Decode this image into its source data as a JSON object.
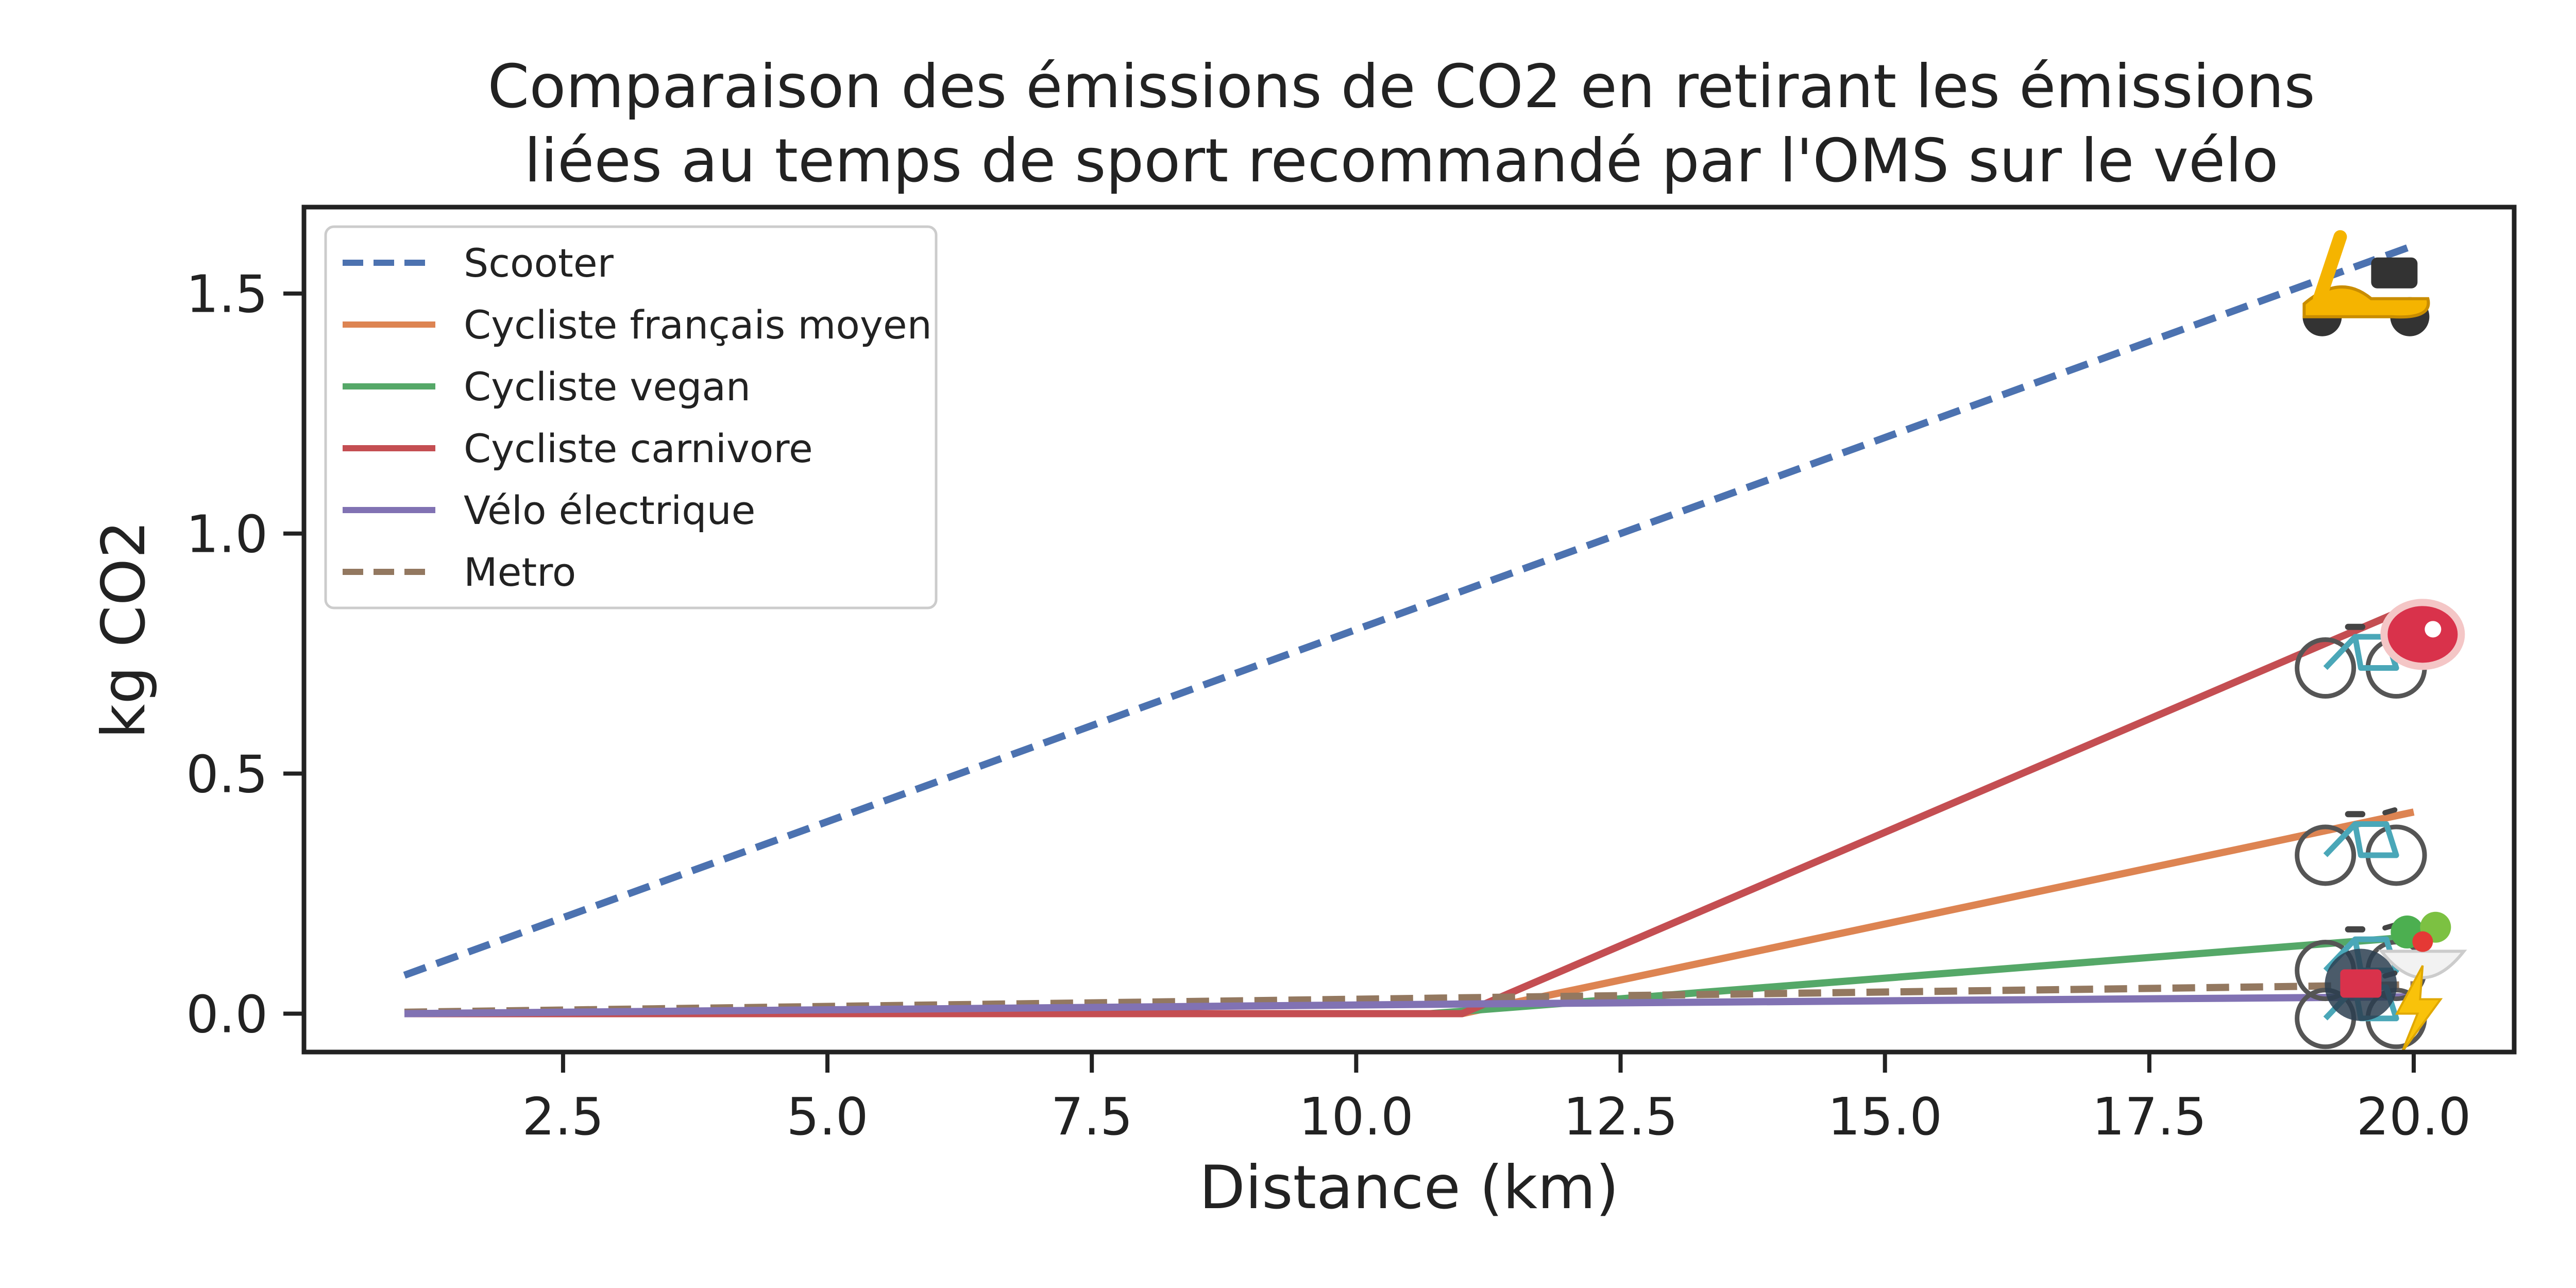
{
  "chart_data": {
    "type": "line",
    "title_line1": "Comparaison des émissions de CO2 en retirant les émissions",
    "title_line2": "liées au temps de sport recommandé par l'OMS sur le vélo",
    "xlabel": "Distance (km)",
    "ylabel": "kg CO2",
    "xlim": [
      0.05,
      20.95
    ],
    "ylim": [
      -0.08,
      1.68
    ],
    "xticks": [
      2.5,
      5.0,
      7.5,
      10.0,
      12.5,
      15.0,
      17.5,
      20.0
    ],
    "xtick_labels": [
      "2.5",
      "5.0",
      "7.5",
      "10.0",
      "12.5",
      "15.0",
      "17.5",
      "20.0"
    ],
    "yticks": [
      0.0,
      0.5,
      1.0,
      1.5
    ],
    "ytick_labels": [
      "0.0",
      "0.5",
      "1.0",
      "1.5"
    ],
    "grid": false,
    "legend_position": "upper-left",
    "series": [
      {
        "name": "Scooter",
        "color": "#4c72b0",
        "dashed": true,
        "icon": "scooter-icon",
        "points": [
          [
            1,
            0.08
          ],
          [
            20,
            1.6
          ]
        ]
      },
      {
        "name": "Cycliste français moyen",
        "color": "#dd8452",
        "dashed": false,
        "icon": "bicycle-icon",
        "points": [
          [
            1,
            0.0
          ],
          [
            11.0,
            0.0
          ],
          [
            20,
            0.42
          ]
        ]
      },
      {
        "name": "Cycliste vegan",
        "color": "#55a868",
        "dashed": false,
        "icon": "bicycle-salad-icon",
        "points": [
          [
            1,
            0.0
          ],
          [
            10.7,
            0.0
          ],
          [
            20,
            0.16
          ]
        ]
      },
      {
        "name": "Cycliste carnivore",
        "color": "#c44e52",
        "dashed": false,
        "icon": "bicycle-steak-icon",
        "points": [
          [
            1,
            0.0
          ],
          [
            11.0,
            0.0
          ],
          [
            20,
            0.85
          ]
        ]
      },
      {
        "name": "Vélo électrique",
        "color": "#8172b3",
        "dashed": false,
        "icon": "bicycle-lightning-icon",
        "points": [
          [
            1,
            0.0
          ],
          [
            11.0,
            0.02
          ],
          [
            20,
            0.035
          ]
        ]
      },
      {
        "name": "Metro",
        "color": "#937860",
        "dashed": true,
        "icon": "metro-icon",
        "points": [
          [
            1,
            0.003
          ],
          [
            20,
            0.06
          ]
        ]
      }
    ]
  }
}
